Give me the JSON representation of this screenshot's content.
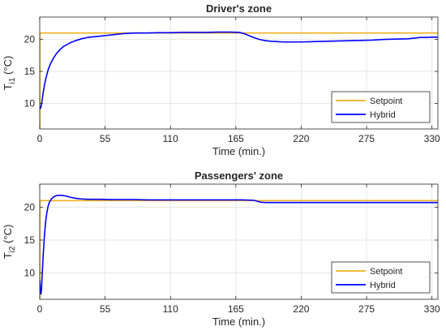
{
  "chart_data": [
    {
      "type": "line",
      "title": "Driver's zone",
      "xlabel": "Time (min.)",
      "ylabel": {
        "main": "T",
        "sub": "i1",
        "unit": " (°C)"
      },
      "xlim": [
        0,
        335
      ],
      "ylim": [
        6,
        23.5
      ],
      "xticks": [
        0,
        55,
        110,
        165,
        220,
        275,
        330
      ],
      "yticks": [
        10,
        15,
        20
      ],
      "grid": true,
      "legend_position": "bottom-right",
      "series": [
        {
          "name": "Setpoint",
          "color": "#EDB120",
          "x": [
            0,
            0.1,
            0.1,
            335
          ],
          "y": [
            6,
            6,
            21,
            21
          ]
        },
        {
          "name": "Hybrid",
          "color": "#0000FF",
          "x": [
            0,
            0.5,
            1,
            2,
            3,
            4,
            5,
            7,
            9,
            11,
            13,
            15,
            17,
            20,
            23,
            26,
            30,
            35,
            40,
            45,
            50,
            55,
            60,
            65,
            70,
            75,
            80,
            90,
            100,
            110,
            120,
            130,
            140,
            150,
            160,
            168,
            172,
            176,
            180,
            185,
            190,
            195,
            200,
            205,
            210,
            215,
            220,
            230,
            240,
            250,
            260,
            270,
            280,
            290,
            300,
            310,
            315,
            320,
            325,
            330,
            335
          ],
          "y": [
            9.5,
            9.2,
            9.4,
            10.5,
            11.8,
            12.9,
            13.8,
            15.2,
            16.2,
            16.9,
            17.5,
            18.0,
            18.4,
            18.9,
            19.2,
            19.5,
            19.8,
            20.1,
            20.3,
            20.4,
            20.5,
            20.6,
            20.7,
            20.8,
            20.9,
            20.95,
            21.0,
            21.0,
            21.05,
            21.05,
            21.1,
            21.1,
            21.1,
            21.15,
            21.15,
            21.1,
            20.9,
            20.6,
            20.3,
            20.0,
            19.8,
            19.7,
            19.65,
            19.6,
            19.6,
            19.6,
            19.6,
            19.65,
            19.7,
            19.75,
            19.8,
            19.85,
            19.9,
            20.0,
            20.05,
            20.1,
            20.2,
            20.3,
            20.3,
            20.35,
            20.35
          ]
        }
      ]
    },
    {
      "type": "line",
      "title": "Passengers' zone",
      "xlabel": "Time (min.)",
      "ylabel": {
        "main": "T",
        "sub": "i2",
        "unit": " (°C)"
      },
      "xlim": [
        0,
        335
      ],
      "ylim": [
        6,
        23.5
      ],
      "xticks": [
        0,
        55,
        110,
        165,
        220,
        275,
        330
      ],
      "yticks": [
        10,
        15,
        20
      ],
      "grid": true,
      "legend_position": "bottom-right",
      "series": [
        {
          "name": "Setpoint",
          "color": "#EDB120",
          "x": [
            0,
            0.1,
            0.1,
            335
          ],
          "y": [
            6,
            6,
            21,
            21
          ]
        },
        {
          "name": "Hybrid",
          "color": "#0000FF",
          "x": [
            0,
            0.5,
            1,
            1.5,
            2,
            3,
            4,
            5,
            6,
            7,
            8,
            10,
            12,
            15,
            18,
            22,
            26,
            30,
            35,
            40,
            45,
            50,
            60,
            70,
            80,
            90,
            100,
            110,
            120,
            130,
            140,
            150,
            160,
            170,
            180,
            183,
            186,
            190,
            200,
            220,
            240,
            260,
            280,
            300,
            320,
            335
          ],
          "y": [
            9.0,
            7.5,
            6.8,
            7.5,
            9.5,
            13.0,
            15.8,
            17.8,
            19.2,
            20.1,
            20.7,
            21.3,
            21.6,
            21.8,
            21.8,
            21.7,
            21.5,
            21.35,
            21.25,
            21.2,
            21.2,
            21.2,
            21.15,
            21.15,
            21.15,
            21.1,
            21.1,
            21.1,
            21.1,
            21.1,
            21.1,
            21.1,
            21.1,
            21.1,
            21.05,
            20.9,
            20.75,
            20.7,
            20.7,
            20.7,
            20.7,
            20.7,
            20.7,
            20.7,
            20.7,
            20.7
          ]
        }
      ]
    }
  ]
}
